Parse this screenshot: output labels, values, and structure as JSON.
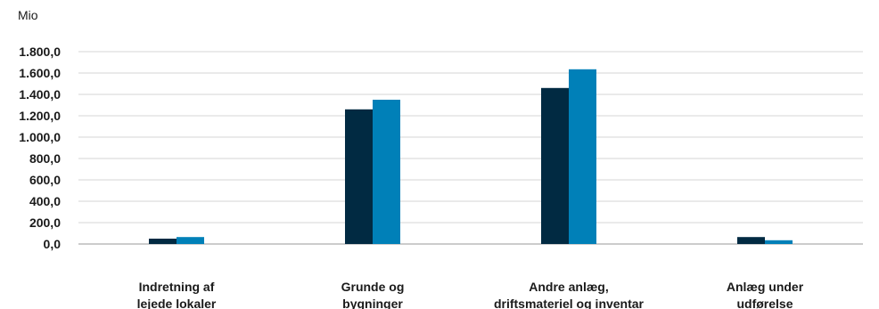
{
  "chart_data": {
    "type": "bar",
    "unit_label": "Mio",
    "categories": [
      [
        "Indretning af",
        "lejede lokaler"
      ],
      [
        "Grunde og",
        "bygninger"
      ],
      [
        "Andre anlæg,",
        "driftsmateriel og inventar"
      ],
      [
        "Anlæg under",
        "udførelse"
      ]
    ],
    "series": [
      {
        "color": "#012a42",
        "values": [
          50,
          1260,
          1460,
          65
        ]
      },
      {
        "color": "#0080b8",
        "values": [
          65,
          1350,
          1635,
          35
        ]
      }
    ],
    "ylim": [
      0,
      1800
    ],
    "yticks": [
      0,
      200,
      400,
      600,
      800,
      1000,
      1200,
      1400,
      1600,
      1800
    ],
    "ytick_labels": [
      "0,0",
      "200,0",
      "400,0",
      "600,0",
      "800,0",
      "1.000,0",
      "1.200,0",
      "1.400,0",
      "1.600,0",
      "1.800,0"
    ],
    "grid": true,
    "legend": "none"
  }
}
